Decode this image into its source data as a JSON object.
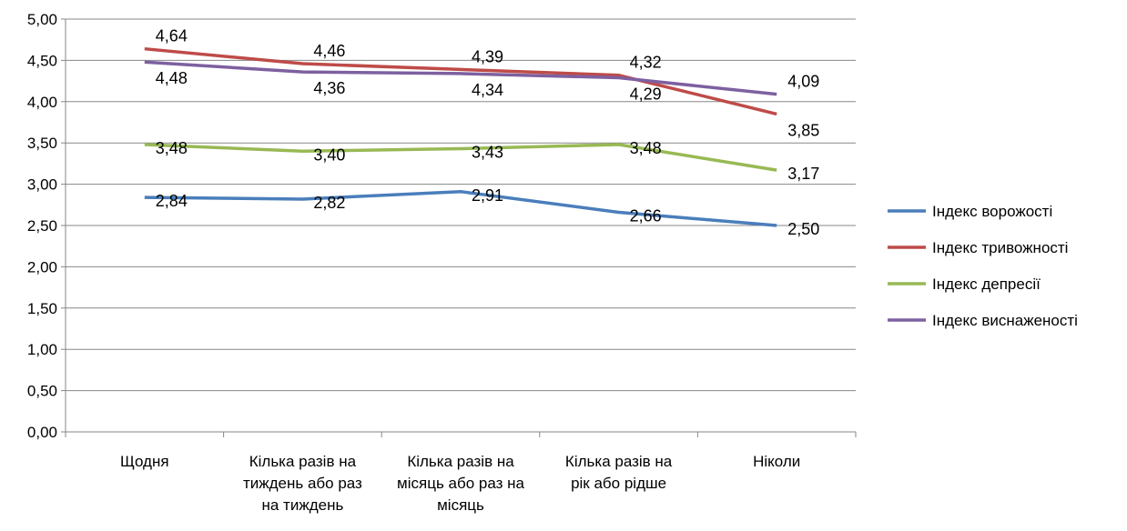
{
  "chart_data": {
    "type": "line",
    "categories": [
      [
        "Щодня"
      ],
      [
        "Кілька разів на",
        "тиждень або раз",
        "на тиждень"
      ],
      [
        "Кілька разів на",
        "місяць або раз на",
        "місяць"
      ],
      [
        "Кілька разів на",
        "рік або рідше"
      ],
      [
        "Ніколи"
      ]
    ],
    "ylim": [
      0,
      5
    ],
    "yticks": [
      "0,00",
      "0,50",
      "1,00",
      "1,50",
      "2,00",
      "2,50",
      "3,00",
      "3,50",
      "4,00",
      "4,50",
      "5,00"
    ],
    "grid": true,
    "legend": "right",
    "series": [
      {
        "name": "Індекс ворожості",
        "color": "#4a7ebb",
        "values": [
          2.84,
          2.82,
          2.91,
          2.66,
          2.5
        ],
        "labels": [
          "2,84",
          "2,82",
          "2,91",
          "2,66",
          "2,50"
        ]
      },
      {
        "name": "Індекс тривожності",
        "color": "#be4b48",
        "values": [
          4.64,
          4.46,
          4.39,
          4.32,
          3.85
        ],
        "labels": [
          "4,64",
          "4,46",
          "4,39",
          "4,32",
          "3,85"
        ]
      },
      {
        "name": "Індекс депресії",
        "color": "#98b954",
        "values": [
          3.48,
          3.4,
          3.43,
          3.48,
          3.17
        ],
        "labels": [
          "3,48",
          "3,40",
          "3,43",
          "3,48",
          "3,17"
        ]
      },
      {
        "name": "Індекс виснаженості",
        "color": "#7d60a0",
        "values": [
          4.48,
          4.36,
          4.34,
          4.29,
          4.09
        ],
        "labels": [
          "4,48",
          "4,36",
          "4,34",
          "4,29",
          "4,09"
        ]
      }
    ]
  }
}
